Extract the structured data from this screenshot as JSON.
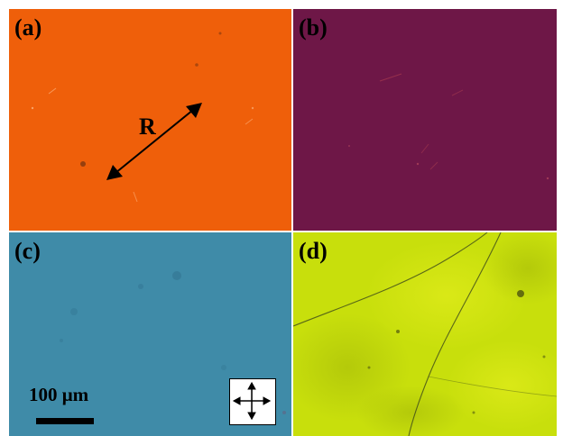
{
  "figure": {
    "panels": [
      {
        "id": "a",
        "label": "(a)",
        "color": "#ef5f0a"
      },
      {
        "id": "b",
        "label": "(b)",
        "color": "#6e1747"
      },
      {
        "id": "c",
        "label": "(c)",
        "color": "#3f8ba8"
      },
      {
        "id": "d",
        "label": "(d)",
        "color": "#c8df0c"
      }
    ],
    "r_label": "R",
    "scale_bar_text": "100 μm",
    "polarizer_icon": "crossed-polarizers-icon"
  }
}
